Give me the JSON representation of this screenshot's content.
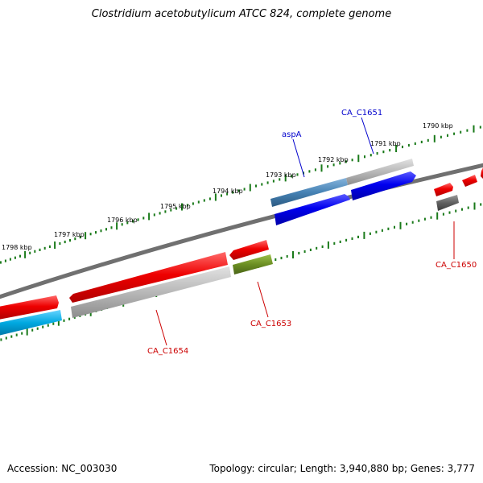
{
  "title": "Clostridium acetobutylicum ATCC 824, complete genome",
  "footer": {
    "accession": "Accession: NC_003030",
    "stats": "Topology: circular; Length: 3,940,880 bp; Genes: 3,777"
  },
  "colors": {
    "backbone": "#707070",
    "tick": "#1a7a1a",
    "red_feature": "#ee0000",
    "blue_gene": "#0000ee",
    "steel_blue": "#4682b4",
    "cyan": "#00a8e0",
    "olive": "#6b8e23",
    "gray_feature": "#b0b0b0",
    "dark_gray": "#606060",
    "label_red": "#cc0000",
    "label_blue": "#0000cc"
  },
  "scale_labels": [
    "1790 kbp",
    "1791 kbp",
    "1792 kbp",
    "1793 kbp",
    "1794 kbp",
    "1795 kbp",
    "1796 kbp",
    "1797 kbp",
    "1798 kbp"
  ],
  "gene_labels": {
    "aspA": "aspA",
    "CA_C1651": "CA_C1651",
    "CA_C1650": "CA_C1650",
    "CA_C1653": "CA_C1653",
    "CA_C1654": "CA_C1654"
  }
}
